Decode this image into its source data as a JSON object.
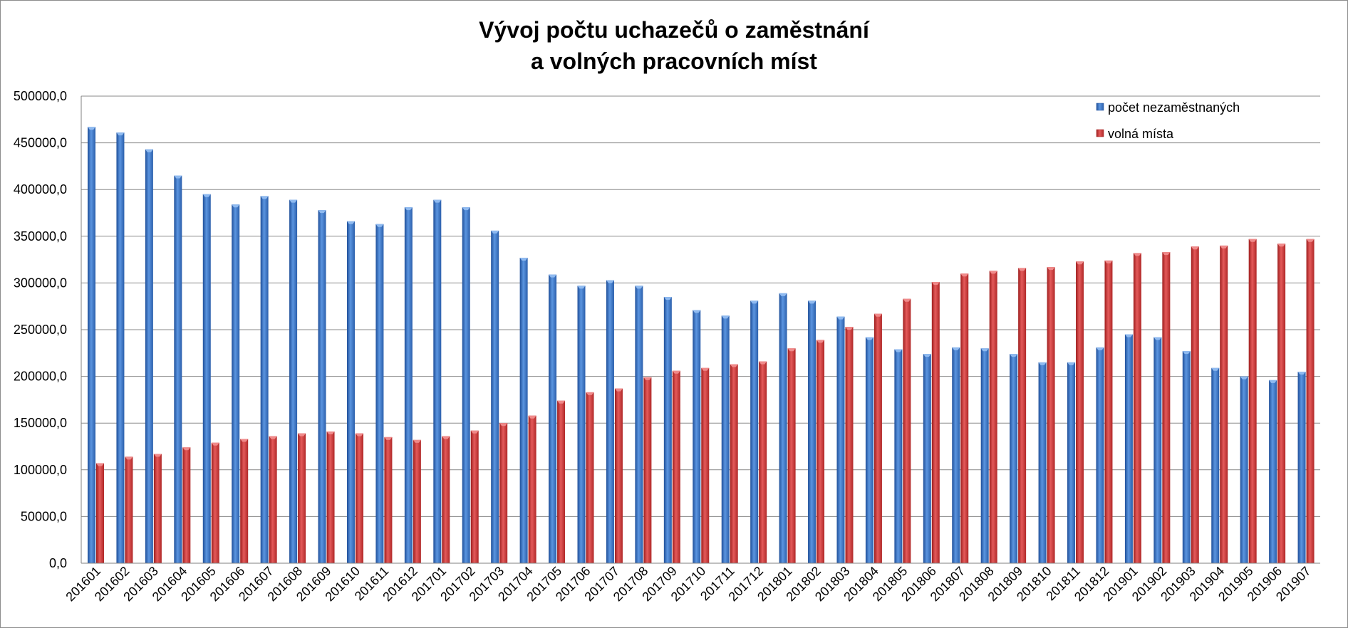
{
  "chart_data": {
    "type": "bar",
    "title_line1": "Vývoj počtu uchazečů o zaměstnání",
    "title_line2": "a volných pracovních míst",
    "xlabel": "",
    "ylabel": "",
    "ylim": [
      0,
      500000
    ],
    "y_ticks": [
      0,
      50000,
      100000,
      150000,
      200000,
      250000,
      300000,
      350000,
      400000,
      450000,
      500000
    ],
    "y_tick_labels": [
      "0,0",
      "50000,0",
      "100000,0",
      "150000,0",
      "200000,0",
      "250000,0",
      "300000,0",
      "350000,0",
      "400000,0",
      "450000,0",
      "500000,0"
    ],
    "grid": true,
    "legend_position": "top-right",
    "categories": [
      "201601",
      "201602",
      "201603",
      "201604",
      "201605",
      "201606",
      "201607",
      "201608",
      "201609",
      "201610",
      "201611",
      "201612",
      "201701",
      "201702",
      "201703",
      "201704",
      "201705",
      "201706",
      "201707",
      "201708",
      "201709",
      "201710",
      "201711",
      "201712",
      "201801",
      "201802",
      "201803",
      "201804",
      "201805",
      "201806",
      "201807",
      "201808",
      "201809",
      "201810",
      "201811",
      "201812",
      "201901",
      "201902",
      "201903",
      "201904",
      "201905",
      "201906",
      "201907"
    ],
    "series": [
      {
        "name": "počet nezaměstnaných",
        "color": "#3f76c8",
        "values": [
          467000,
          461000,
          443000,
          415000,
          395000,
          384000,
          393000,
          389000,
          378000,
          366000,
          363000,
          381000,
          389000,
          381000,
          356000,
          327000,
          309000,
          297000,
          303000,
          297000,
          285000,
          271000,
          265000,
          281000,
          289000,
          281000,
          264000,
          242000,
          229000,
          224000,
          231000,
          230000,
          224000,
          215000,
          215000,
          231000,
          245000,
          242000,
          227000,
          209000,
          200000,
          196000,
          205000
        ]
      },
      {
        "name": "volná místa",
        "color": "#d03a3a",
        "values": [
          107000,
          114000,
          117000,
          124000,
          129000,
          133000,
          136000,
          139000,
          141000,
          139000,
          135000,
          132000,
          136000,
          142000,
          150000,
          158000,
          174000,
          183000,
          187000,
          199000,
          206000,
          209000,
          213000,
          216000,
          230000,
          239000,
          253000,
          267000,
          283000,
          301000,
          310000,
          313000,
          316000,
          317000,
          323000,
          324000,
          332000,
          333000,
          339000,
          340000,
          347000,
          342000,
          347000
        ]
      }
    ]
  }
}
